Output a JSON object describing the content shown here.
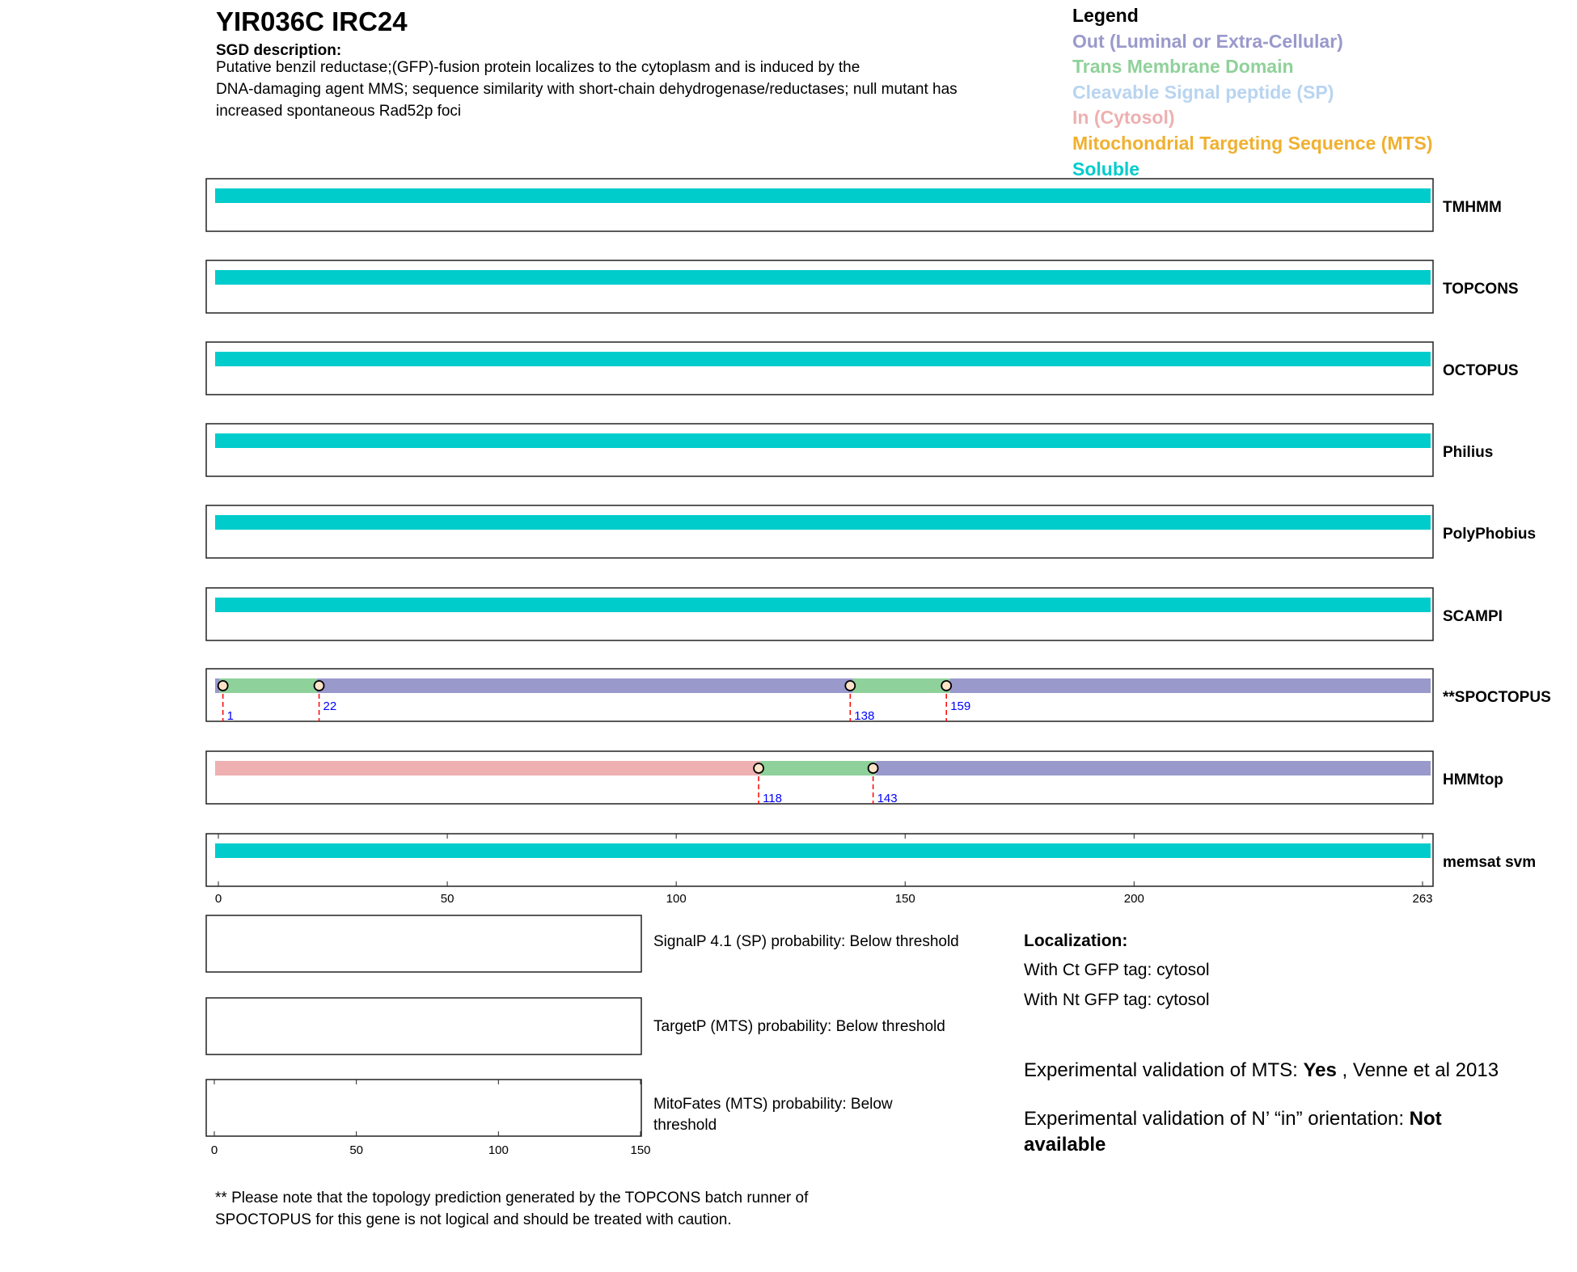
{
  "header": {
    "title": "YIR036C  IRC24",
    "sgd_label": "SGD description:",
    "sgd_lines": [
      "Putative benzil reductase;(GFP)-fusion protein localizes to the cytoplasm and is induced by the",
      "DNA-damaging agent MMS; sequence similarity with short-chain dehydrogenase/reductases; null mutant has",
      "increased spontaneous Rad52p foci"
    ]
  },
  "legend": {
    "title": "Legend",
    "items": [
      {
        "label": "Out (Luminal or Extra-Cellular)",
        "color": "#9999cc"
      },
      {
        "label": "Trans Membrane Domain",
        "color": "#8fd19a"
      },
      {
        "label": "Cleavable Signal peptide (SP)",
        "color": "#b8d4f0"
      },
      {
        "label": "In (Cytosol)",
        "color": "#eeb0b0"
      },
      {
        "label": "Mitochondrial Targeting Sequence (MTS)",
        "color": "#f0b030"
      },
      {
        "label": "Soluble",
        "color": "#00cccc"
      }
    ]
  },
  "chart_data": {
    "type": "topology-tracks",
    "length": 263,
    "axis_ticks": [
      0,
      50,
      100,
      150,
      200,
      263
    ],
    "colors": {
      "out": "#9999cc",
      "tm": "#8fd19a",
      "sp": "#b8d4f0",
      "in": "#eeb0b0",
      "mts": "#f0b030",
      "soluble": "#00cccc"
    },
    "tracks": [
      {
        "name": "TMHMM",
        "segments": [
          {
            "start": 0,
            "end": 263,
            "type": "soluble"
          }
        ],
        "markers": []
      },
      {
        "name": "TOPCONS",
        "segments": [
          {
            "start": 0,
            "end": 263,
            "type": "soluble"
          }
        ],
        "markers": []
      },
      {
        "name": "OCTOPUS",
        "segments": [
          {
            "start": 0,
            "end": 263,
            "type": "soluble"
          }
        ],
        "markers": []
      },
      {
        "name": "Philius",
        "segments": [
          {
            "start": 0,
            "end": 263,
            "type": "soluble"
          }
        ],
        "markers": []
      },
      {
        "name": "PolyPhobius",
        "segments": [
          {
            "start": 0,
            "end": 263,
            "type": "soluble"
          }
        ],
        "markers": []
      },
      {
        "name": "SCAMPI",
        "segments": [
          {
            "start": 0,
            "end": 263,
            "type": "soluble"
          }
        ],
        "markers": []
      },
      {
        "name": "**SPOCTOPUS",
        "segments": [
          {
            "start": 0,
            "end": 1,
            "type": "out"
          },
          {
            "start": 1,
            "end": 22,
            "type": "tm"
          },
          {
            "start": 22,
            "end": 138,
            "type": "out"
          },
          {
            "start": 138,
            "end": 159,
            "type": "tm"
          },
          {
            "start": 159,
            "end": 263,
            "type": "out"
          }
        ],
        "markers": [
          {
            "pos": 1,
            "label": "1",
            "low": true
          },
          {
            "pos": 22,
            "label": "22",
            "low": false
          },
          {
            "pos": 138,
            "label": "138",
            "low": true
          },
          {
            "pos": 159,
            "label": "159",
            "low": false
          }
        ]
      },
      {
        "name": "HMMtop",
        "segments": [
          {
            "start": 0,
            "end": 118,
            "type": "in"
          },
          {
            "start": 118,
            "end": 143,
            "type": "tm"
          },
          {
            "start": 143,
            "end": 263,
            "type": "out"
          }
        ],
        "markers": [
          {
            "pos": 118,
            "label": "118",
            "low": true
          },
          {
            "pos": 143,
            "label": "143",
            "low": true
          }
        ]
      },
      {
        "name": "memsat svm",
        "segments": [
          {
            "start": 0,
            "end": 263,
            "type": "soluble"
          }
        ],
        "markers": []
      }
    ],
    "small_axis_ticks": [
      0,
      50,
      100,
      150
    ],
    "small_axis_max": 150
  },
  "predictions": {
    "signalp": "SignalP 4.1 (SP) probability: Below threshold",
    "targetp": "TargetP (MTS) probability: Below threshold",
    "mitofates_1": "MitoFates (MTS) probability: Below",
    "mitofates_2": "threshold"
  },
  "localization": {
    "title": "Localization:",
    "ct": "With Ct GFP tag: cytosol",
    "nt": "With Nt GFP tag: cytosol",
    "mts_prefix": "Experimental validation of MTS: ",
    "mts_value": "Yes",
    "mts_suffix": " , Venne et al 2013",
    "nin_prefix": "Experimental validation of N’ “in” orientation: ",
    "nin_value_1": "Not",
    "nin_value_2": "available"
  },
  "footnote": [
    "** Please note that the topology prediction generated by the TOPCONS batch runner of",
    "SPOCTOPUS for this gene is not logical and should be treated with caution."
  ]
}
